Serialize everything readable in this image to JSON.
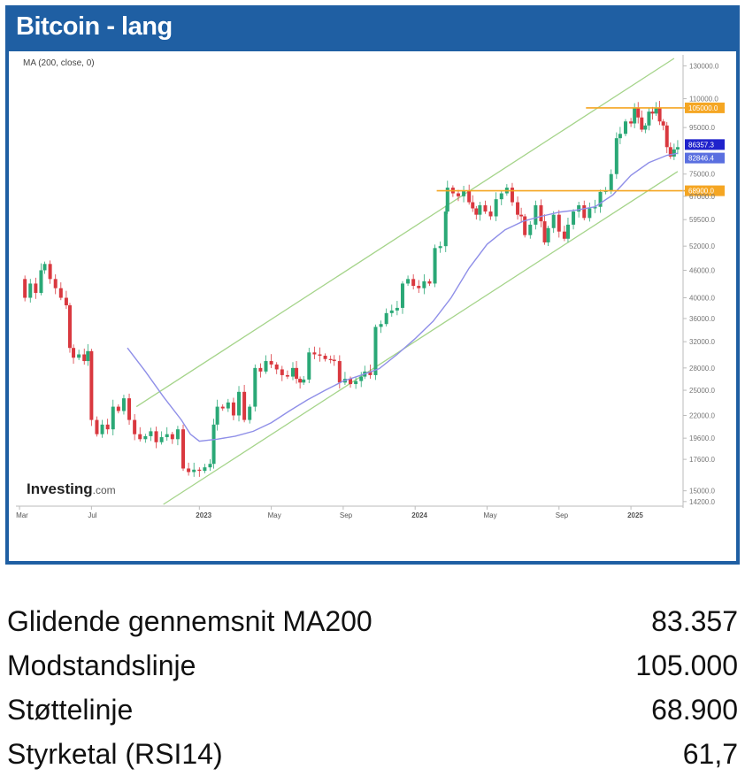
{
  "header": {
    "title": "Bitcoin - lang"
  },
  "chart_data": {
    "type": "line",
    "indicator_label": "MA (200, close, 0)",
    "watermark": "Investing",
    "watermark_suffix": ".com",
    "y_scale": "log",
    "ylim": [
      14000,
      135000
    ],
    "y_ticks": [
      {
        "value": 14200,
        "label": "14200.0"
      },
      {
        "value": 15000,
        "label": "15000.0"
      },
      {
        "value": 17600,
        "label": "17600.0"
      },
      {
        "value": 19600,
        "label": "19600.0"
      },
      {
        "value": 22000,
        "label": "22000.0"
      },
      {
        "value": 25000,
        "label": "25000.0"
      },
      {
        "value": 28000,
        "label": "28000.0"
      },
      {
        "value": 32000,
        "label": "32000.0"
      },
      {
        "value": 36000,
        "label": "36000.0"
      },
      {
        "value": 40000,
        "label": "40000.0"
      },
      {
        "value": 46000,
        "label": "46000.0"
      },
      {
        "value": 52000,
        "label": "52000.0"
      },
      {
        "value": 59500,
        "label": "59500.0"
      },
      {
        "value": 67000,
        "label": "67000.0"
      },
      {
        "value": 75000,
        "label": "75000.0"
      },
      {
        "value": 95000,
        "label": "95000.0"
      },
      {
        "value": 110000,
        "label": "110000.0"
      },
      {
        "value": 130000,
        "label": "130000.0"
      }
    ],
    "x_ticks": [
      {
        "t": 0,
        "label": "Mar",
        "bold": false
      },
      {
        "t": 4,
        "label": "Jul",
        "bold": false
      },
      {
        "t": 10,
        "label": "2023",
        "bold": true
      },
      {
        "t": 14,
        "label": "May",
        "bold": false
      },
      {
        "t": 18,
        "label": "Sep",
        "bold": false
      },
      {
        "t": 22,
        "label": "2024",
        "bold": true
      },
      {
        "t": 26,
        "label": "May",
        "bold": false
      },
      {
        "t": 30,
        "label": "Sep",
        "bold": false
      },
      {
        "t": 34,
        "label": "2025",
        "bold": true
      }
    ],
    "x_range": [
      -0.2,
      36.8
    ],
    "price": [
      [
        0,
        44000
      ],
      [
        0.3,
        40000
      ],
      [
        0.6,
        43000
      ],
      [
        0.9,
        41000
      ],
      [
        1.2,
        46000
      ],
      [
        1.4,
        47500
      ],
      [
        1.7,
        44000
      ],
      [
        2.0,
        42000
      ],
      [
        2.3,
        40000
      ],
      [
        2.6,
        38500
      ],
      [
        2.8,
        31000
      ],
      [
        3.0,
        29500
      ],
      [
        3.3,
        30000
      ],
      [
        3.6,
        29000
      ],
      [
        3.8,
        30500
      ],
      [
        4.0,
        21500
      ],
      [
        4.3,
        20000
      ],
      [
        4.6,
        21000
      ],
      [
        4.9,
        20500
      ],
      [
        5.2,
        23000
      ],
      [
        5.5,
        22500
      ],
      [
        5.8,
        24000
      ],
      [
        6.1,
        21500
      ],
      [
        6.4,
        20000
      ],
      [
        6.7,
        19500
      ],
      [
        7.0,
        19800
      ],
      [
        7.3,
        20300
      ],
      [
        7.6,
        19200
      ],
      [
        7.9,
        19700
      ],
      [
        8.2,
        20000
      ],
      [
        8.5,
        19500
      ],
      [
        8.8,
        20500
      ],
      [
        9.1,
        16800
      ],
      [
        9.4,
        16500
      ],
      [
        9.7,
        16700
      ],
      [
        10.0,
        16600
      ],
      [
        10.3,
        16900
      ],
      [
        10.6,
        17200
      ],
      [
        10.8,
        21000
      ],
      [
        11.0,
        23000
      ],
      [
        11.3,
        22800
      ],
      [
        11.6,
        23500
      ],
      [
        11.9,
        22000
      ],
      [
        12.2,
        24800
      ],
      [
        12.5,
        21500
      ],
      [
        12.8,
        23000
      ],
      [
        13.1,
        28000
      ],
      [
        13.4,
        27500
      ],
      [
        13.7,
        29000
      ],
      [
        14.0,
        28500
      ],
      [
        14.3,
        27800
      ],
      [
        14.6,
        27000
      ],
      [
        14.9,
        26800
      ],
      [
        15.2,
        28000
      ],
      [
        15.4,
        26500
      ],
      [
        15.6,
        26000
      ],
      [
        15.8,
        26400
      ],
      [
        16.1,
        30300
      ],
      [
        16.4,
        30000
      ],
      [
        16.7,
        29800
      ],
      [
        17.0,
        29300
      ],
      [
        17.3,
        29200
      ],
      [
        17.5,
        29000
      ],
      [
        17.8,
        26000
      ],
      [
        18.1,
        26500
      ],
      [
        18.4,
        25800
      ],
      [
        18.7,
        26200
      ],
      [
        19.0,
        26800
      ],
      [
        19.2,
        27500
      ],
      [
        19.5,
        27000
      ],
      [
        19.8,
        34500
      ],
      [
        20.1,
        35000
      ],
      [
        20.4,
        37000
      ],
      [
        20.7,
        37500
      ],
      [
        21.0,
        38000
      ],
      [
        21.3,
        43000
      ],
      [
        21.6,
        44000
      ],
      [
        21.9,
        42500
      ],
      [
        22.2,
        42000
      ],
      [
        22.5,
        43500
      ],
      [
        22.8,
        43000
      ],
      [
        23.1,
        51500
      ],
      [
        23.4,
        52000
      ],
      [
        23.7,
        62000
      ],
      [
        23.8,
        70000
      ],
      [
        24.1,
        68000
      ],
      [
        24.4,
        67000
      ],
      [
        24.7,
        69000
      ],
      [
        25.0,
        65000
      ],
      [
        25.2,
        63000
      ],
      [
        25.4,
        61000
      ],
      [
        25.6,
        64000
      ],
      [
        25.9,
        62000
      ],
      [
        26.2,
        60500
      ],
      [
        26.5,
        66000
      ],
      [
        26.8,
        68000
      ],
      [
        27.1,
        70000
      ],
      [
        27.4,
        65000
      ],
      [
        27.7,
        61000
      ],
      [
        27.9,
        60500
      ],
      [
        28.1,
        55000
      ],
      [
        28.4,
        58000
      ],
      [
        28.7,
        64000
      ],
      [
        29.0,
        59000
      ],
      [
        29.2,
        53000
      ],
      [
        29.4,
        57000
      ],
      [
        29.7,
        61000
      ],
      [
        30.0,
        56000
      ],
      [
        30.3,
        54000
      ],
      [
        30.5,
        58000
      ],
      [
        30.8,
        62000
      ],
      [
        31.1,
        64000
      ],
      [
        31.4,
        60000
      ],
      [
        31.7,
        63000
      ],
      [
        32.0,
        63500
      ],
      [
        32.3,
        68500
      ],
      [
        32.6,
        69000
      ],
      [
        32.9,
        75000
      ],
      [
        33.2,
        90000
      ],
      [
        33.4,
        92000
      ],
      [
        33.7,
        98000
      ],
      [
        34.0,
        97000
      ],
      [
        34.2,
        105000
      ],
      [
        34.4,
        100000
      ],
      [
        34.6,
        94000
      ],
      [
        34.8,
        96000
      ],
      [
        35.0,
        103000
      ],
      [
        35.2,
        102000
      ],
      [
        35.4,
        105000
      ],
      [
        35.6,
        98000
      ],
      [
        35.8,
        96000
      ],
      [
        36.0,
        86000
      ],
      [
        36.2,
        82000
      ],
      [
        36.4,
        85000
      ],
      [
        36.6,
        86000
      ]
    ],
    "ma200": [
      [
        6.0,
        31000
      ],
      [
        7.0,
        27500
      ],
      [
        8.0,
        24200
      ],
      [
        9.0,
        21500
      ],
      [
        9.5,
        20000
      ],
      [
        10.0,
        19300
      ],
      [
        10.5,
        19400
      ],
      [
        11.0,
        19500
      ],
      [
        12.0,
        19800
      ],
      [
        13.0,
        20300
      ],
      [
        14.0,
        21200
      ],
      [
        15.0,
        22500
      ],
      [
        16.0,
        23800
      ],
      [
        17.0,
        25000
      ],
      [
        18.0,
        26200
      ],
      [
        19.0,
        27000
      ],
      [
        20.0,
        27900
      ],
      [
        21.0,
        30000
      ],
      [
        22.0,
        32500
      ],
      [
        23.0,
        35500
      ],
      [
        24.0,
        40000
      ],
      [
        25.0,
        46500
      ],
      [
        26.0,
        52500
      ],
      [
        27.0,
        56500
      ],
      [
        28.0,
        59000
      ],
      [
        29.0,
        60500
      ],
      [
        30.0,
        61800
      ],
      [
        31.0,
        62500
      ],
      [
        32.0,
        63500
      ],
      [
        33.0,
        67500
      ],
      [
        34.0,
        74500
      ],
      [
        35.0,
        79500
      ],
      [
        36.0,
        82500
      ],
      [
        36.6,
        83357
      ]
    ],
    "channel": {
      "upper": [
        [
          6.5,
          23000
        ],
        [
          36.4,
          135000
        ]
      ],
      "lower": [
        [
          8.0,
          14000
        ],
        [
          36.6,
          76000
        ]
      ]
    },
    "hlines": [
      {
        "y": 105000,
        "label": "105000.0",
        "x_from": 31.5
      },
      {
        "y": 68900,
        "label": "68900.0",
        "x_from": 23.2
      }
    ],
    "price_tags": [
      {
        "y": 86357.3,
        "label": "86357.3"
      },
      {
        "y": 82846.4,
        "label": "82846.4"
      }
    ],
    "colors": {
      "up": "#2aa876",
      "down": "#d9383f",
      "ma": "#8f8fe8",
      "channel": "#a5d48a",
      "hline": "#f5a623",
      "tag_dark": "#1f22cc",
      "tag_light": "#5a6fe0",
      "frame": "#1f5fa3",
      "grid_text": "#777777"
    }
  },
  "stats": [
    {
      "label": "Glidende gennemsnit MA200",
      "value": "83.357"
    },
    {
      "label": "Modstandslinje",
      "value": "105.000"
    },
    {
      "label": "Støttelinje",
      "value": "68.900"
    },
    {
      "label": "Styrketal (RSI14)",
      "value": "61,7"
    }
  ]
}
